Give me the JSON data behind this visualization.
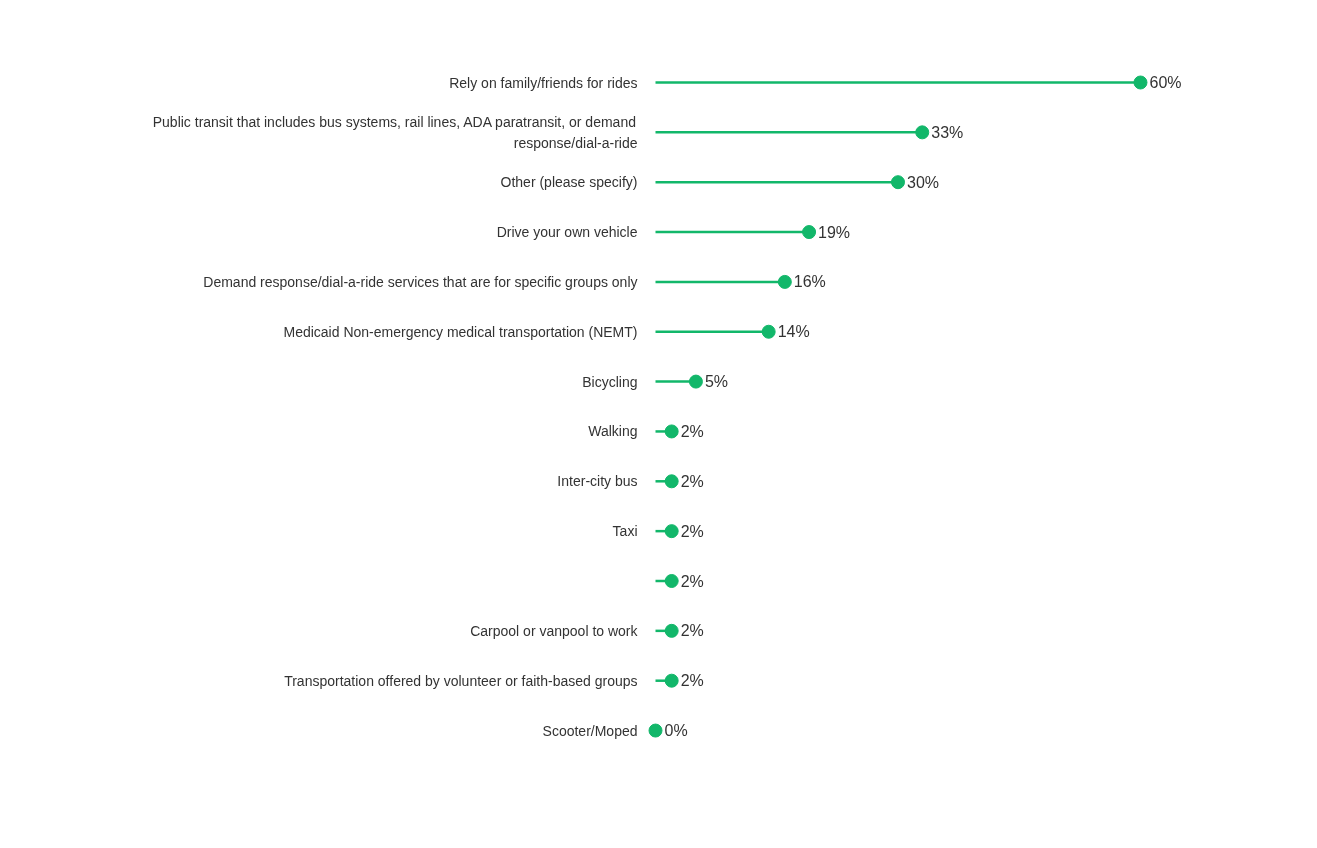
{
  "chart_data": {
    "type": "lollipop",
    "orientation": "horizontal",
    "color": "#12b76a",
    "categories": [
      "Rely on family/friends for rides",
      "Public transit that includes bus systems, rail lines, ADA paratransit, or demand response/dial-a-ride",
      "Other (please specify)",
      "Drive your own vehicle",
      "Demand response/dial-a-ride services that are for specific groups only",
      "Medicaid Non-emergency medical transportation (NEMT)",
      "Bicycling",
      "Walking",
      "Inter-city bus",
      "Taxi",
      null,
      "Carpool or vanpool to work",
      "Transportation offered by volunteer or faith-based groups",
      "Scooter/Moped"
    ],
    "values": [
      60,
      33,
      30,
      19,
      16,
      14,
      5,
      2,
      2,
      2,
      2,
      2,
      2,
      0
    ],
    "value_labels": [
      "60%",
      "33%",
      "30%",
      "19%",
      "16%",
      "14%",
      "5%",
      "2%",
      "2%",
      "2%",
      "2%",
      "2%",
      "2%",
      "0%"
    ],
    "marker": "circle",
    "grid": false
  }
}
